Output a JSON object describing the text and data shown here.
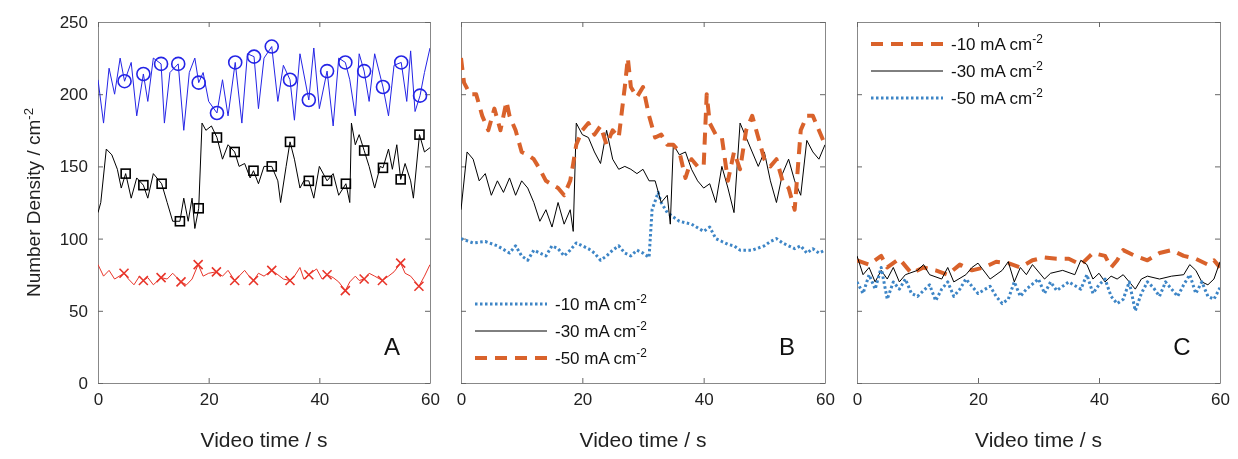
{
  "chart_data": [
    {
      "type": "line",
      "ylabel": "Number Density / cm$^{-2}$",
      "xlabel": "Video time / s",
      "xlim": [
        0,
        60
      ],
      "xticks": [
        0,
        20,
        40,
        60
      ],
      "ylim": [
        0,
        250
      ],
      "yticks": [
        0,
        50,
        100,
        150,
        200,
        250
      ],
      "grid": false,
      "legend": false,
      "annotations": [
        "A"
      ],
      "series": [
        {
          "color": "#2424e6",
          "line_style": "solid",
          "marker": "none",
          "x": [
            0,
            1,
            2,
            3,
            4,
            4.8,
            6,
            7,
            8.2,
            9,
            10,
            11.4,
            12,
            13,
            14.5,
            15.5,
            16.5,
            17.5,
            18.2,
            19,
            20,
            21.5,
            22.5,
            23.5,
            24.8,
            26,
            27,
            28.2,
            29,
            30,
            31.4,
            32.5,
            33.5,
            34.7,
            35.5,
            36.5,
            38.1,
            39,
            40,
            41.4,
            42.5,
            43.5,
            44.7,
            45.5,
            46.5,
            47.2,
            48.1,
            49,
            50,
            51.5,
            52.5,
            53.5,
            54.8,
            55.8,
            56.5,
            57.3,
            58.2,
            59,
            60
          ],
          "values": [
            210,
            180,
            218,
            200,
            225,
            209,
            222,
            185,
            214,
            195,
            225,
            221,
            180,
            215,
            221,
            175,
            215,
            225,
            208,
            215,
            195,
            187,
            210,
            185,
            222,
            180,
            228,
            226,
            190,
            225,
            233,
            195,
            220,
            210,
            182,
            228,
            196,
            232,
            190,
            216,
            178,
            225,
            222,
            210,
            185,
            228,
            216,
            195,
            228,
            205,
            185,
            220,
            222,
            195,
            230,
            188,
            199,
            215,
            232
          ]
        },
        {
          "type": "scatter",
          "color": "#2424e6",
          "marker": "circle",
          "x": [
            4.8,
            8.2,
            11.4,
            14.5,
            18.2,
            21.5,
            24.8,
            28.2,
            31.4,
            34.7,
            38.1,
            41.4,
            44.7,
            48.1,
            51.5,
            54.8,
            58.2
          ],
          "values": [
            209,
            214,
            221,
            221,
            208,
            187,
            222,
            226,
            233,
            210,
            196,
            216,
            222,
            216,
            205,
            222,
            199
          ]
        },
        {
          "color": "#000000",
          "line_style": "solid",
          "marker": "none",
          "x": [
            0,
            0.5,
            1.5,
            2.5,
            3.5,
            4.2,
            5,
            6,
            7,
            8.2,
            9,
            10,
            11.5,
            12.5,
            13.5,
            14.8,
            15.5,
            16.3,
            17,
            17.5,
            18.2,
            18.8,
            19.5,
            20.5,
            21.5,
            22.5,
            23.5,
            24.7,
            25.5,
            26.5,
            27.5,
            28.1,
            29,
            30,
            31.4,
            32.5,
            33,
            34,
            34.7,
            35.5,
            36.5,
            37.2,
            38.1,
            39,
            40,
            41.4,
            42.5,
            43.5,
            44.8,
            45.5,
            45.8,
            46.5,
            47.2,
            48.1,
            49,
            50,
            51,
            51.5,
            52.5,
            53.2,
            54,
            54.7,
            55.5,
            56.5,
            57,
            58.1,
            59,
            60
          ],
          "values": [
            118,
            125,
            162,
            158,
            148,
            135,
            145,
            128,
            142,
            137,
            128,
            145,
            138,
            125,
            112,
            112,
            128,
            112,
            128,
            107,
            121,
            180,
            175,
            178,
            170,
            155,
            165,
            160,
            150,
            152,
            142,
            147,
            138,
            150,
            150,
            140,
            125,
            150,
            167,
            155,
            135,
            140,
            140,
            128,
            150,
            140,
            145,
            130,
            138,
            125,
            180,
            165,
            172,
            161,
            150,
            135,
            150,
            149,
            162,
            148,
            165,
            141,
            152,
            140,
            128,
            172,
            160,
            163
          ]
        },
        {
          "type": "scatter",
          "color": "#000000",
          "marker": "square",
          "x": [
            5,
            8.2,
            11.5,
            14.8,
            18.2,
            21.5,
            24.7,
            28.1,
            31.4,
            34.7,
            38.1,
            41.4,
            44.8,
            48.1,
            51.5,
            54.7,
            58.1
          ],
          "values": [
            145,
            137,
            138,
            112,
            121,
            170,
            160,
            147,
            150,
            167,
            140,
            140,
            138,
            161,
            149,
            141,
            172
          ]
        },
        {
          "color": "#e8352a",
          "line_style": "solid",
          "marker": "none",
          "x": [
            0,
            1,
            2,
            3,
            4.7,
            5.5,
            6.5,
            7.5,
            8.2,
            9,
            10,
            11.4,
            12.5,
            13.5,
            15,
            16,
            17,
            18.1,
            19,
            20,
            21.4,
            22.5,
            23.5,
            24.7,
            25.5,
            26.5,
            27.3,
            28.1,
            29,
            30,
            31.4,
            32.5,
            33.5,
            34.7,
            35.5,
            36.5,
            37.2,
            38.1,
            39.5,
            40.5,
            41.4,
            42.5,
            43.5,
            44.7,
            45.5,
            46.5,
            47.2,
            48.1,
            49,
            50,
            51.4,
            52.5,
            53.5,
            54.7,
            55.5,
            56.5,
            58,
            59,
            60
          ],
          "values": [
            82,
            74,
            78,
            72,
            76,
            72,
            68,
            74,
            71,
            73,
            68,
            73,
            72,
            76,
            70,
            68,
            72,
            82,
            74,
            76,
            77,
            74,
            78,
            71,
            74,
            78,
            74,
            71,
            76,
            74,
            78,
            75,
            72,
            71,
            74,
            80,
            72,
            75,
            79,
            72,
            75,
            73,
            70,
            64,
            70,
            74,
            71,
            72,
            76,
            74,
            71,
            74,
            77,
            83,
            76,
            74,
            67,
            74,
            82
          ]
        },
        {
          "type": "scatter",
          "color": "#e8352a",
          "marker": "cross",
          "x": [
            4.7,
            8.2,
            11.4,
            15,
            18.1,
            21.4,
            24.7,
            28.1,
            31.4,
            34.7,
            38.1,
            41.4,
            44.7,
            48.1,
            51.4,
            54.7,
            58
          ],
          "values": [
            76,
            71,
            73,
            70,
            82,
            77,
            71,
            71,
            78,
            71,
            75,
            75,
            64,
            72,
            71,
            83,
            67
          ]
        }
      ]
    },
    {
      "type": "line",
      "xlabel": "Video time / s",
      "xlim": [
        0,
        60
      ],
      "xticks": [
        0,
        20,
        40,
        60
      ],
      "ylim": [
        0,
        250
      ],
      "yticks": [
        0,
        50,
        100,
        150,
        200,
        250
      ],
      "tick_labels": "x",
      "grid": false,
      "legend": "bottom left",
      "annotations": [
        "B"
      ],
      "series": [
        {
          "name": "-10 mA cm$^{-2}$",
          "color": "#3d85c6",
          "line_style": "dotted",
          "marker": "none",
          "x": [
            0,
            2,
            4,
            6,
            8,
            9,
            10,
            11,
            12,
            13,
            14,
            15,
            16,
            17,
            18,
            19,
            20,
            21,
            22,
            23,
            24,
            25,
            26,
            27,
            28,
            29,
            30,
            31,
            31.5,
            32.5,
            33,
            34,
            35,
            36,
            38,
            40,
            41,
            42,
            43,
            44,
            45,
            46,
            48,
            50,
            51,
            52,
            53,
            54,
            55,
            56,
            57,
            58,
            59,
            60
          ],
          "values": [
            100,
            97,
            98,
            95,
            90,
            95,
            88,
            85,
            92,
            90,
            88,
            95,
            93,
            88,
            92,
            97,
            95,
            93,
            90,
            85,
            88,
            92,
            95,
            90,
            88,
            92,
            90,
            87,
            120,
            132,
            125,
            118,
            115,
            112,
            110,
            105,
            108,
            100,
            98,
            96,
            95,
            92,
            92,
            95,
            98,
            100,
            97,
            95,
            93,
            95,
            90,
            93,
            90,
            92
          ]
        },
        {
          "name": "-30 mA cm$^{-2}$",
          "color": "#000000",
          "line_style": "solid",
          "marker": "none",
          "x": [
            0,
            1,
            2,
            3,
            4,
            5,
            6,
            7,
            8,
            9,
            10,
            11,
            12,
            13,
            14,
            15,
            16,
            17,
            18,
            18.5,
            19,
            20,
            21,
            22,
            23,
            24,
            25,
            26,
            27,
            28,
            29,
            30,
            31,
            32,
            33,
            34,
            34.5,
            35,
            36,
            37,
            38,
            39,
            40,
            41,
            42,
            43,
            44,
            45,
            46,
            47,
            48,
            49,
            50,
            51,
            52,
            53,
            54,
            55,
            56,
            57,
            58,
            59,
            60
          ],
          "values": [
            120,
            160,
            155,
            140,
            145,
            130,
            140,
            132,
            142,
            130,
            140,
            135,
            125,
            112,
            120,
            108,
            125,
            110,
            120,
            105,
            180,
            172,
            170,
            160,
            152,
            175,
            155,
            148,
            150,
            148,
            145,
            148,
            140,
            140,
            125,
            130,
            110,
            165,
            158,
            160,
            148,
            140,
            135,
            138,
            125,
            150,
            135,
            118,
            180,
            170,
            160,
            150,
            160,
            140,
            125,
            145,
            155,
            140,
            130,
            168,
            160,
            155,
            165
          ]
        },
        {
          "name": "-50 mA cm$^{-2}$",
          "color": "#d9622b",
          "line_style": "dashed",
          "marker": "none",
          "x": [
            0,
            0.5,
            1.5,
            2.5,
            3.5,
            4.5,
            5.5,
            6.5,
            7.5,
            8,
            9,
            10,
            11,
            12,
            13,
            14,
            16,
            17,
            18,
            18.5,
            19,
            20,
            21,
            22,
            23,
            24,
            25,
            26,
            27,
            27.5,
            28,
            29,
            30,
            31,
            32,
            33,
            34,
            35,
            36,
            37,
            38,
            39,
            40,
            40.5,
            41,
            42,
            43,
            44,
            45,
            46,
            47,
            48,
            49,
            50,
            51,
            52,
            53,
            54,
            55,
            56,
            57,
            58,
            59,
            60
          ],
          "values": [
            225,
            208,
            200,
            200,
            185,
            175,
            190,
            175,
            195,
            185,
            175,
            160,
            158,
            155,
            148,
            140,
            135,
            130,
            140,
            152,
            165,
            175,
            180,
            172,
            178,
            165,
            175,
            170,
            205,
            225,
            205,
            198,
            205,
            185,
            170,
            172,
            165,
            165,
            160,
            142,
            155,
            150,
            150,
            200,
            180,
            172,
            170,
            140,
            160,
            148,
            175,
            185,
            170,
            155,
            150,
            155,
            140,
            135,
            120,
            175,
            185,
            185,
            175,
            165
          ]
        }
      ]
    },
    {
      "type": "line",
      "xlabel": "Video time / s",
      "xlim": [
        0,
        60
      ],
      "xticks": [
        0,
        20,
        40,
        60
      ],
      "ylim": [
        0,
        250
      ],
      "yticks": [
        0,
        50,
        100,
        150,
        200,
        250
      ],
      "tick_labels": "x",
      "grid": false,
      "legend": "top left",
      "annotations": [
        "C"
      ],
      "series": [
        {
          "name": "-10 mA cm$^{-2}$",
          "color": "#d9622b",
          "line_style": "dashed",
          "marker": "none",
          "x": [
            0,
            2,
            4,
            5,
            7,
            9,
            11,
            13,
            15,
            17,
            19,
            21,
            23,
            25,
            27,
            29,
            31,
            33,
            35,
            37,
            39,
            41,
            42,
            43,
            44,
            46,
            48,
            50,
            52,
            54,
            56,
            58,
            59,
            60
          ],
          "values": [
            85,
            82,
            88,
            80,
            86,
            76,
            80,
            78,
            75,
            82,
            78,
            80,
            84,
            83,
            80,
            85,
            87,
            86,
            86,
            82,
            90,
            88,
            80,
            85,
            92,
            88,
            85,
            90,
            92,
            88,
            86,
            82,
            85,
            80
          ]
        },
        {
          "name": "-30 mA cm$^{-2}$",
          "color": "#000000",
          "line_style": "solid",
          "marker": "none",
          "x": [
            0,
            1,
            2,
            3,
            4,
            5,
            6,
            7,
            8,
            10,
            11,
            12,
            14,
            15,
            16,
            18,
            19,
            20,
            22,
            24,
            25,
            26,
            27,
            28,
            29,
            31,
            32,
            34,
            36,
            37,
            38,
            39,
            40,
            41,
            42,
            43,
            44,
            45,
            46,
            47,
            48,
            50,
            52,
            54,
            55,
            56,
            57,
            58,
            59,
            60
          ],
          "values": [
            88,
            75,
            80,
            70,
            78,
            72,
            80,
            70,
            75,
            78,
            82,
            75,
            72,
            80,
            70,
            75,
            80,
            83,
            72,
            78,
            84,
            70,
            80,
            75,
            82,
            72,
            76,
            78,
            75,
            85,
            82,
            72,
            76,
            70,
            74,
            72,
            75,
            70,
            65,
            72,
            74,
            72,
            74,
            75,
            82,
            78,
            70,
            68,
            72,
            84
          ]
        },
        {
          "name": "-50 mA cm$^{-2}$",
          "color": "#3d85c6",
          "line_style": "dotted",
          "marker": "none",
          "x": [
            0,
            1,
            2,
            3,
            4,
            5,
            6,
            7,
            8,
            9,
            10,
            12,
            13,
            14,
            15,
            16,
            17,
            18,
            20,
            22,
            23,
            24,
            25,
            26,
            27,
            28,
            30,
            31,
            32,
            33,
            35,
            37,
            38,
            39,
            40,
            41,
            42,
            43,
            44,
            45,
            46,
            47,
            48,
            49,
            50,
            51,
            52,
            53,
            54,
            55,
            56,
            57,
            58,
            59,
            60
          ],
          "values": [
            70,
            62,
            75,
            65,
            80,
            58,
            70,
            65,
            72,
            62,
            60,
            68,
            57,
            65,
            70,
            60,
            65,
            72,
            62,
            67,
            60,
            55,
            58,
            70,
            60,
            65,
            72,
            62,
            70,
            64,
            70,
            65,
            75,
            62,
            68,
            72,
            60,
            55,
            58,
            70,
            50,
            62,
            70,
            66,
            60,
            70,
            65,
            60,
            68,
            75,
            62,
            70,
            60,
            58,
            66
          ]
        }
      ]
    }
  ]
}
